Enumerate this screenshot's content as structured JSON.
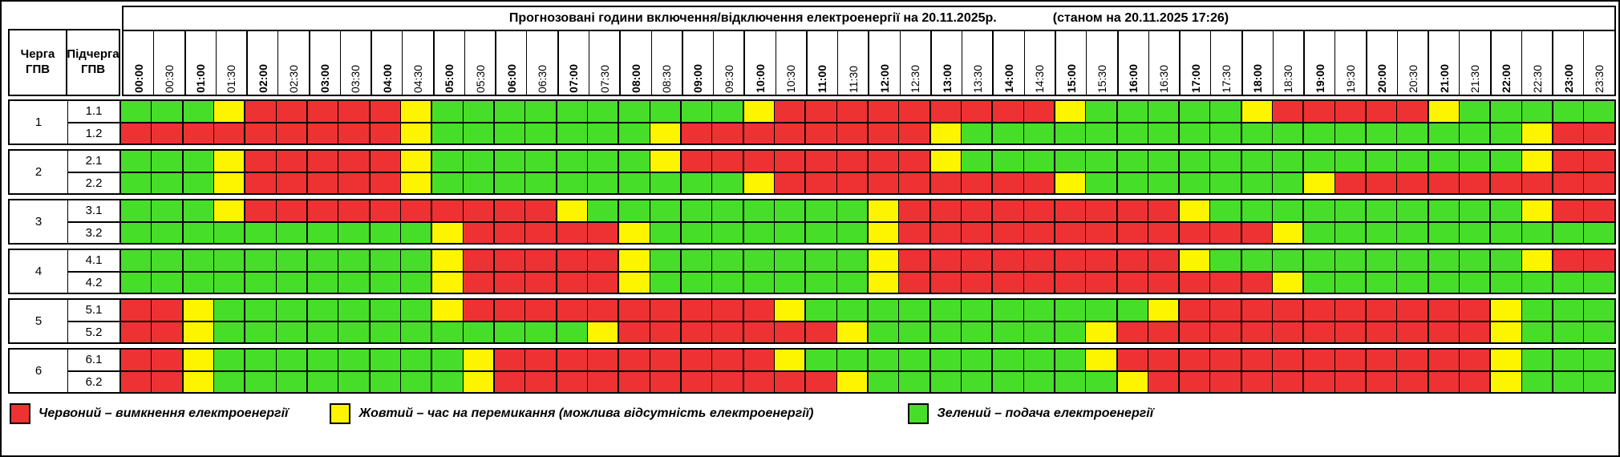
{
  "header": {
    "col1": "Черга ГПВ",
    "col2": "Підчерга ГПВ",
    "title": "Прогнозовані години включення/відключення електроенергії на 20.11.2025р.",
    "status": "(станом на 20.11.2025 17:26)"
  },
  "colors": {
    "R": "#ee3233",
    "Y": "#fdf500",
    "G": "#47de29",
    "border": "#000000"
  },
  "legend": {
    "items": [
      {
        "swatch": "R",
        "color": "#ee3233",
        "label": "Червоний – вимкнення електроенергії"
      },
      {
        "swatch": "Y",
        "color": "#fdf500",
        "label": "Жовтий – час на перемикання (можлива відсутність електроенергії)"
      },
      {
        "swatch": "G",
        "color": "#47de29",
        "label": "Зелений – подача електроенергії"
      }
    ]
  },
  "chart_data": {
    "type": "heatmap",
    "title": "Прогнозовані години включення/відключення електроенергії на 20.11.2025р. (станом на 20.11.2025 17:26)",
    "x_labels": [
      "00:00",
      "00:30",
      "01:00",
      "01:30",
      "02:00",
      "02:30",
      "03:00",
      "03:30",
      "04:00",
      "04:30",
      "05:00",
      "05:30",
      "06:00",
      "06:30",
      "07:00",
      "07:30",
      "08:00",
      "08:30",
      "09:00",
      "09:30",
      "10:00",
      "10:30",
      "11:00",
      "11:30",
      "12:00",
      "12:30",
      "13:00",
      "13:30",
      "14:00",
      "14:30",
      "15:00",
      "15:30",
      "16:00",
      "16:30",
      "17:00",
      "17:30",
      "18:00",
      "18:30",
      "19:00",
      "19:30",
      "20:00",
      "20:30",
      "21:00",
      "21:30",
      "22:00",
      "22:30",
      "23:00",
      "23:30"
    ],
    "value_legend": {
      "R": "вимкнення електроенергії",
      "Y": "час на перемикання (можлива відсутність електроенергії)",
      "G": "подача електроенергії"
    },
    "groups": [
      {
        "queue": "1",
        "rows": [
          {
            "subqueue": "1.1",
            "slots": "GGGYRRRRRYGGGGGGGGGGYRRRRRRRRRYGGGGGYRRRRRYGGGGG"
          },
          {
            "subqueue": "1.2",
            "slots": "RRRRRRRRRYGGGGGGGYRRRRRRRRYGGGGGGGGGGGGGGGGGGYRR"
          }
        ]
      },
      {
        "queue": "2",
        "rows": [
          {
            "subqueue": "2.1",
            "slots": "GGGYRRRRRYGGGGGGGYRRRRRRRRYGGGGGGGGGGGGGGGGGGYRR"
          },
          {
            "subqueue": "2.2",
            "slots": "GGGYRRRRRYGGGGGGGGGGYRRRRRRRRRYGGGGGGGYRRRRRRRRR"
          }
        ]
      },
      {
        "queue": "3",
        "rows": [
          {
            "subqueue": "3.1",
            "slots": "GGGYRRRRRRRRRRYGGGGGGGGGYRRRRRRRRRYGGGGGGGGGGYRR"
          },
          {
            "subqueue": "3.2",
            "slots": "GGGGGGGGGGYRRRRRYGGGGGGGYRRRRRRRRRRRRYGGGGGGGGGG"
          }
        ]
      },
      {
        "queue": "4",
        "rows": [
          {
            "subqueue": "4.1",
            "slots": "GGGGGGGGGGYRRRRRYGGGGGGGYRRRRRRRRRYGGGGGGGGGGYRR"
          },
          {
            "subqueue": "4.2",
            "slots": "GGGGGGGGGGYRRRRRYGGGGGGGYRRRRRRRRRRRRYGGGGGGGGGG"
          }
        ]
      },
      {
        "queue": "5",
        "rows": [
          {
            "subqueue": "5.1",
            "slots": "RRYGGGGGGGYRRRRRRRRRRYGGGGGGGGGGGYRRRRRRRRRRYGGG"
          },
          {
            "subqueue": "5.2",
            "slots": "RRYGGGGGGGGGGGGYRRRRRRRYGGGGGGGYRRRRRRRRRRRRYGGG"
          }
        ]
      },
      {
        "queue": "6",
        "rows": [
          {
            "subqueue": "6.1",
            "slots": "RRYGGGGGGGGYRRRRRRRRRYGGGGGGGGGYRRRRRRRRRRRRYGGG"
          },
          {
            "subqueue": "6.2",
            "slots": "RRYGGGGGGGGYRRRRRRRRRRRYGGGGGGGGYRRRRRRRRRRRYGGG"
          }
        ]
      }
    ]
  }
}
